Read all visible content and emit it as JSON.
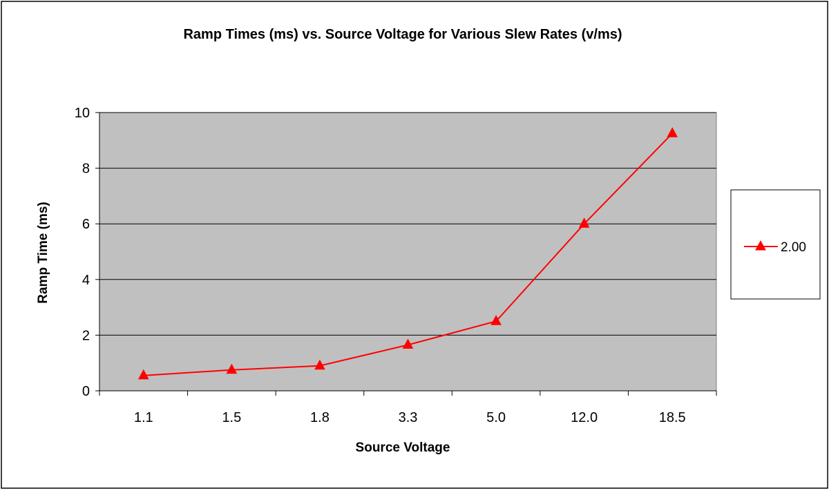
{
  "chart_data": {
    "type": "line",
    "title": "Ramp Times (ms) vs.  Source Voltage for Various Slew Rates (v/ms)",
    "xlabel": "Source Voltage",
    "ylabel": "Ramp Time (ms)",
    "categories": [
      "1.1",
      "1.5",
      "1.8",
      "3.3",
      "5.0",
      "12.0",
      "18.5"
    ],
    "ylim": [
      0,
      10
    ],
    "yticks": [
      "0",
      "2",
      "4",
      "6",
      "8",
      "10"
    ],
    "grid": true,
    "legend_position": "right",
    "series": [
      {
        "name": "2.00",
        "values": [
          0.55,
          0.75,
          0.9,
          1.65,
          2.5,
          6.0,
          9.25
        ],
        "color": "#ff0000",
        "marker": "triangle"
      }
    ],
    "colors": {
      "plot_background": "#c0c0c0",
      "gridline": "#000000",
      "frame": "#000000"
    }
  }
}
